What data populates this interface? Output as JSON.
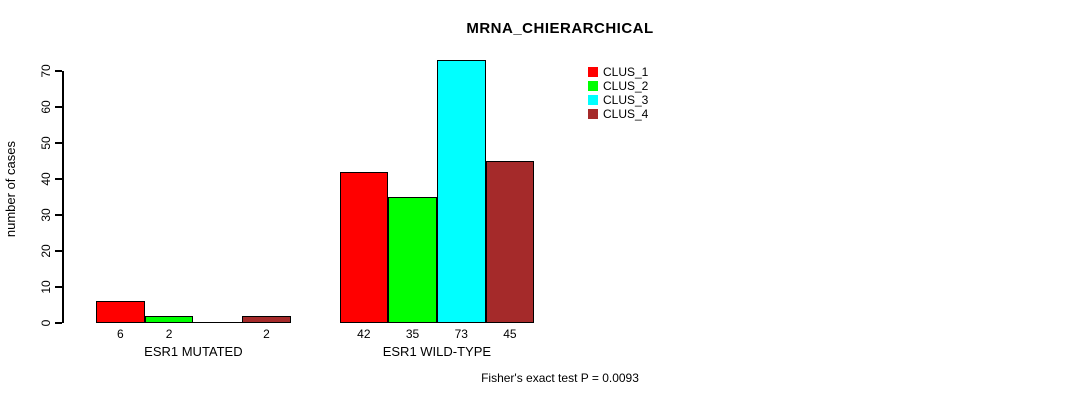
{
  "chart_data": {
    "type": "bar",
    "title": "MRNA_CHIERARCHICAL",
    "ylabel": "number of cases",
    "xlabel": "",
    "categories": [
      "ESR1 MUTATED",
      "ESR1 WILD-TYPE"
    ],
    "series": [
      {
        "name": "CLUS_1",
        "color": "#ff0000",
        "values": [
          6,
          42
        ]
      },
      {
        "name": "CLUS_2",
        "color": "#00ff00",
        "values": [
          2,
          35
        ]
      },
      {
        "name": "CLUS_3",
        "color": "#00ffff",
        "values": [
          0,
          73
        ]
      },
      {
        "name": "CLUS_4",
        "color": "#a52a2a",
        "values": [
          2,
          45
        ]
      }
    ],
    "bar_value_labels": [
      [
        "6",
        "2",
        "",
        "2"
      ],
      [
        "42",
        "35",
        "73",
        "45"
      ]
    ],
    "yticks": [
      0,
      10,
      20,
      30,
      40,
      50,
      60,
      70
    ],
    "ylim": [
      0,
      73
    ],
    "grid": false,
    "legend_position": "top-right",
    "annotation": "Fisher's exact test P = 0.0093"
  },
  "colors": {
    "axis": "#000000",
    "text": "#000000",
    "background": "#ffffff"
  }
}
